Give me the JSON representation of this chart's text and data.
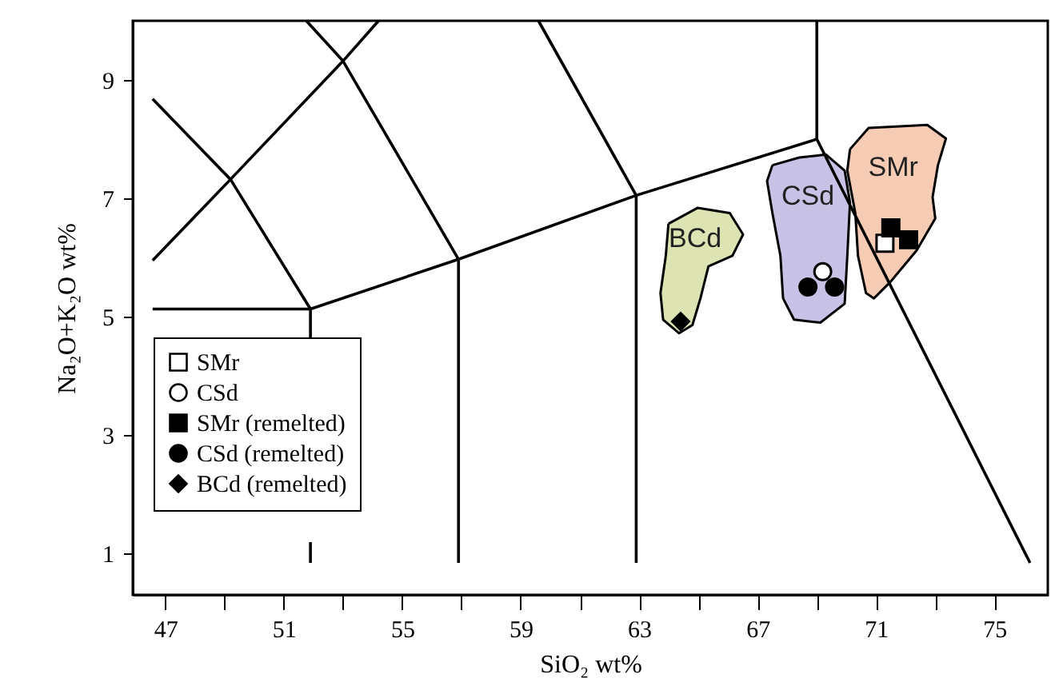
{
  "chart_data": {
    "type": "scatter",
    "xlabel": "SiO₂ wt%",
    "ylabel": "Na₂O+K₂O wt%",
    "xlim": [
      45.9,
      76.8
    ],
    "ylim": [
      0.3,
      10
    ],
    "xticks": [
      47,
      {
        "value": 49,
        "label": null
      },
      51,
      {
        "value": 53,
        "label": null
      },
      55,
      {
        "value": 57,
        "label": null
      },
      59,
      {
        "value": 61,
        "label": null
      },
      63,
      {
        "value": 65,
        "label": null
      },
      67,
      {
        "value": 69,
        "label": null
      },
      71,
      {
        "value": 73,
        "label": null
      },
      75
    ],
    "yticks": [
      1,
      3,
      5,
      7,
      9
    ],
    "grid": false,
    "legend": "bottom left",
    "series": [
      {
        "name": "SMr",
        "type": "area",
        "color": "#f6cdb4",
        "x": [
          70.12,
          70.75,
          72.73,
          73.36,
          73.09,
          72.91,
          73.0,
          72.37,
          71.47,
          70.93,
          70.66,
          70.39,
          70.3,
          70.03,
          70.12
        ],
        "values": [
          7.83,
          8.19,
          8.24,
          8.01,
          7.56,
          7.02,
          6.66,
          6.12,
          5.58,
          5.31,
          5.4,
          6.03,
          6.75,
          7.47,
          7.83
        ]
      },
      {
        "name": "CSd",
        "type": "area",
        "color": "#c8c3e6",
        "x": [
          67.5,
          68.41,
          69.31,
          69.94,
          70.12,
          70.03,
          69.94,
          69.12,
          68.23,
          67.86,
          67.77,
          67.5,
          67.32,
          67.5
        ],
        "values": [
          7.56,
          7.69,
          7.74,
          7.47,
          6.93,
          6.03,
          5.22,
          4.9,
          4.95,
          5.31,
          6.03,
          6.75,
          7.29,
          7.56
        ]
      },
      {
        "name": "BCd",
        "type": "area",
        "color": "#dde3b3",
        "x": [
          63.99,
          64.98,
          66.06,
          66.51,
          66.15,
          65.34,
          65.07,
          64.8,
          64.35,
          63.81,
          63.72,
          63.9,
          63.99
        ],
        "values": [
          6.57,
          6.84,
          6.75,
          6.39,
          6.03,
          5.85,
          5.31,
          4.86,
          4.72,
          4.95,
          5.4,
          6.03,
          6.57
        ]
      },
      {
        "type": "line",
        "color": "#000000",
        "x": [
          46.57,
          49.2,
          53.0,
          54.2
        ],
        "values": [
          5.95,
          7.32,
          9.32,
          10
        ]
      },
      {
        "type": "line",
        "color": "#000000",
        "x": [
          46.57,
          49.2,
          51.9,
          51.9
        ],
        "values": [
          8.68,
          7.32,
          5.13,
          4.65
        ]
      },
      {
        "type": "line",
        "color": "#000000",
        "x": [
          51.76,
          53.0,
          56.9,
          56.9
        ],
        "values": [
          10,
          9.32,
          5.97,
          0.84
        ]
      },
      {
        "type": "line",
        "color": "#000000",
        "x": [
          59.6,
          62.9,
          62.9
        ],
        "values": [
          10,
          7.05,
          0.84
        ]
      },
      {
        "type": "line",
        "color": "#000000",
        "x": [
          46.57,
          51.9,
          56.9,
          62.9,
          69.0,
          76.2
        ],
        "values": [
          5.13,
          5.13,
          5.97,
          7.05,
          8.0,
          0.84
        ]
      },
      {
        "type": "line",
        "color": "#000000",
        "x": [
          51.9,
          51.9
        ],
        "values": [
          1.19,
          0.84
        ]
      },
      {
        "type": "line",
        "color": "#000000",
        "x": [
          69.0,
          69.0
        ],
        "values": [
          8.0,
          10
        ]
      },
      {
        "name": "SMr",
        "marker": "square",
        "color": "#ffffff",
        "x": [
          71.3
        ],
        "values": [
          6.24
        ]
      },
      {
        "name": "CSd",
        "marker": "circle",
        "color": "#ffffff",
        "x": [
          69.2
        ],
        "values": [
          5.76
        ]
      },
      {
        "name": "SMr (remelted)",
        "marker": "square",
        "color": "#000000",
        "x": [
          71.5,
          72.1
        ],
        "values": [
          6.5,
          6.3
        ]
      },
      {
        "name": "CSd (remelted)",
        "marker": "circle",
        "color": "#000000",
        "x": [
          68.7,
          69.6
        ],
        "values": [
          5.5,
          5.5
        ]
      },
      {
        "name": "BCd (remelted)",
        "marker": "diamond",
        "color": "#000000",
        "x": [
          64.4
        ],
        "values": [
          4.92
        ]
      }
    ]
  }
}
